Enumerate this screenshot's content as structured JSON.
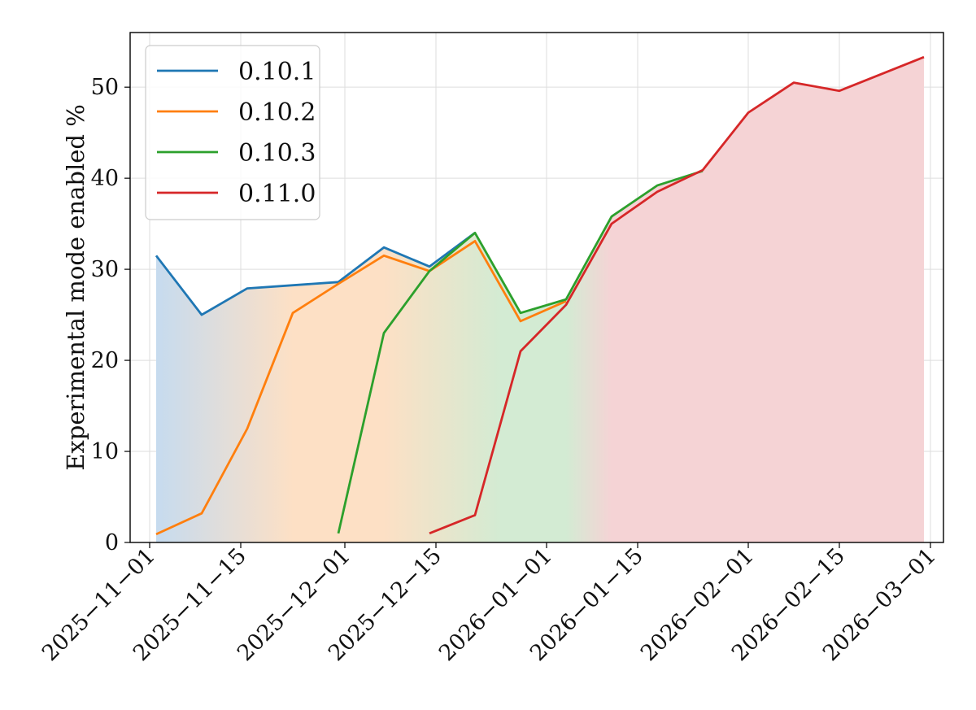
{
  "chart_data": {
    "type": "line",
    "title": "",
    "xlabel": "",
    "ylabel": "Experimental mode enabled %",
    "x_type": "date",
    "xlim": [
      "2025-10-29",
      "2026-03-03"
    ],
    "ylim": [
      0,
      56
    ],
    "x_ticks": [
      "2025-11-01",
      "2025-11-15",
      "2025-12-01",
      "2025-12-15",
      "2026-01-01",
      "2026-01-15",
      "2026-02-01",
      "2026-02-15",
      "2026-03-01"
    ],
    "x_tick_labels": [
      "2025−11−01",
      "2025−11−15",
      "2025−12−01",
      "2025−12−15",
      "2026−01−01",
      "2026−01−15",
      "2026−02−01",
      "2026−02−15",
      "2026−03−01"
    ],
    "y_ticks": [
      0,
      10,
      20,
      30,
      40,
      50
    ],
    "y_tick_labels": [
      "0",
      "10",
      "20",
      "30",
      "40",
      "50"
    ],
    "grid": true,
    "legend_position": "top-left",
    "series": [
      {
        "name": "0.10.1",
        "color": "#1f77b4",
        "points": [
          {
            "x": "2025-11-02",
            "y": 31.5
          },
          {
            "x": "2025-11-09",
            "y": 25.0
          },
          {
            "x": "2025-11-16",
            "y": 27.9
          },
          {
            "x": "2025-11-30",
            "y": 28.6
          },
          {
            "x": "2025-12-07",
            "y": 32.4
          },
          {
            "x": "2025-12-14",
            "y": 30.3
          },
          {
            "x": "2025-12-21",
            "y": 34.0
          }
        ]
      },
      {
        "name": "0.10.2",
        "color": "#ff7f0e",
        "points": [
          {
            "x": "2025-11-02",
            "y": 0.9
          },
          {
            "x": "2025-11-09",
            "y": 3.2
          },
          {
            "x": "2025-11-16",
            "y": 12.5
          },
          {
            "x": "2025-11-23",
            "y": 25.2
          },
          {
            "x": "2025-11-30",
            "y": 28.4
          },
          {
            "x": "2025-12-07",
            "y": 31.5
          },
          {
            "x": "2025-12-14",
            "y": 29.8
          },
          {
            "x": "2025-12-21",
            "y": 33.1
          },
          {
            "x": "2025-12-28",
            "y": 24.3
          },
          {
            "x": "2026-01-04",
            "y": 26.5
          }
        ]
      },
      {
        "name": "0.10.3",
        "color": "#2ca02c",
        "points": [
          {
            "x": "2025-11-30",
            "y": 1.0
          },
          {
            "x": "2025-12-07",
            "y": 23.0
          },
          {
            "x": "2025-12-14",
            "y": 29.8
          },
          {
            "x": "2025-12-21",
            "y": 34.0
          },
          {
            "x": "2025-12-28",
            "y": 25.2
          },
          {
            "x": "2026-01-04",
            "y": 26.7
          },
          {
            "x": "2026-01-11",
            "y": 35.8
          },
          {
            "x": "2026-01-18",
            "y": 39.2
          },
          {
            "x": "2026-01-25",
            "y": 40.8
          }
        ]
      },
      {
        "name": "0.11.0",
        "color": "#d62728",
        "points": [
          {
            "x": "2025-12-14",
            "y": 1.0
          },
          {
            "x": "2025-12-21",
            "y": 3.0
          },
          {
            "x": "2025-12-28",
            "y": 21.0
          },
          {
            "x": "2026-01-04",
            "y": 26.1
          },
          {
            "x": "2026-01-11",
            "y": 35.0
          },
          {
            "x": "2026-01-18",
            "y": 38.5
          },
          {
            "x": "2026-01-25",
            "y": 40.9
          },
          {
            "x": "2026-02-01",
            "y": 47.2
          },
          {
            "x": "2026-02-08",
            "y": 50.5
          },
          {
            "x": "2026-02-15",
            "y": 49.6
          },
          {
            "x": "2026-02-28",
            "y": 53.3
          }
        ]
      }
    ],
    "shaded_area_note": "",
    "fill": {
      "boundary": [
        {
          "x": "2025-11-02",
          "y": 31.5
        },
        {
          "x": "2025-11-09",
          "y": 25.0
        },
        {
          "x": "2025-11-16",
          "y": 27.9
        },
        {
          "x": "2025-11-30",
          "y": 28.6
        },
        {
          "x": "2025-12-07",
          "y": 32.4
        },
        {
          "x": "2025-12-14",
          "y": 30.3
        },
        {
          "x": "2025-12-21",
          "y": 34.0
        },
        {
          "x": "2025-12-28",
          "y": 25.2
        },
        {
          "x": "2026-01-04",
          "y": 26.7
        },
        {
          "x": "2026-01-11",
          "y": 35.8
        },
        {
          "x": "2026-01-18",
          "y": 39.2
        },
        {
          "x": "2026-01-25",
          "y": 40.9
        },
        {
          "x": "2026-02-01",
          "y": 47.2
        },
        {
          "x": "2026-02-08",
          "y": 50.5
        },
        {
          "x": "2026-02-15",
          "y": 49.6
        },
        {
          "x": "2026-02-28",
          "y": 53.3
        }
      ],
      "gradient": [
        {
          "x": "2025-11-02",
          "color": "#c6dbef"
        },
        {
          "x": "2025-11-23",
          "color": "#fde0c5"
        },
        {
          "x": "2025-12-07",
          "color": "#fde0c5"
        },
        {
          "x": "2025-12-25",
          "color": "#d3ebd3"
        },
        {
          "x": "2026-01-04",
          "color": "#d3ebd3"
        },
        {
          "x": "2026-01-11",
          "color": "#f5d3d5"
        },
        {
          "x": "2026-02-28",
          "color": "#f5d3d5"
        }
      ]
    }
  }
}
